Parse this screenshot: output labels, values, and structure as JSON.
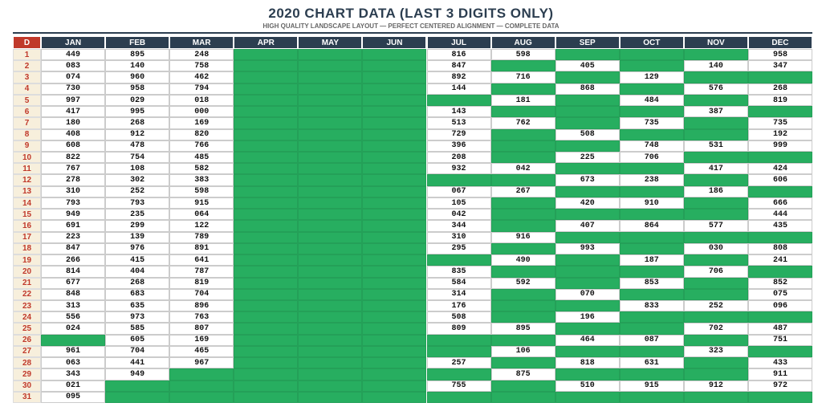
{
  "header": {
    "title": "2020 CHART DATA (LAST 3 DIGITS ONLY)",
    "subtitle": "HIGH QUALITY LANDSCAPE LAYOUT — PERFECT CENTERED ALIGNMENT — COMPLETE DATA"
  },
  "table": {
    "columns": [
      "D",
      "JAN",
      "FEB",
      "MAR",
      "APR",
      "MAY",
      "JUN",
      "JUL",
      "AUG",
      "SEP",
      "OCT",
      "NOV",
      "DEC"
    ],
    "rows": [
      {
        "day": "1",
        "cells": [
          "449",
          "895",
          "248",
          null,
          null,
          null,
          "816",
          "598",
          null,
          null,
          null,
          "958"
        ]
      },
      {
        "day": "2",
        "cells": [
          "083",
          "140",
          "758",
          null,
          null,
          null,
          "847",
          null,
          "405",
          null,
          "140",
          "347"
        ]
      },
      {
        "day": "3",
        "cells": [
          "074",
          "960",
          "462",
          null,
          null,
          null,
          "892",
          "716",
          null,
          "129",
          null,
          null
        ]
      },
      {
        "day": "4",
        "cells": [
          "730",
          "958",
          "794",
          null,
          null,
          null,
          "144",
          null,
          "868",
          null,
          "576",
          "268"
        ]
      },
      {
        "day": "5",
        "cells": [
          "997",
          "029",
          "018",
          null,
          null,
          null,
          null,
          "181",
          null,
          "484",
          null,
          "819"
        ]
      },
      {
        "day": "6",
        "cells": [
          "417",
          "995",
          "000",
          null,
          null,
          null,
          "143",
          null,
          null,
          null,
          "387",
          null
        ]
      },
      {
        "day": "7",
        "cells": [
          "180",
          "268",
          "169",
          null,
          null,
          null,
          "513",
          "762",
          null,
          "735",
          null,
          "735"
        ]
      },
      {
        "day": "8",
        "cells": [
          "408",
          "912",
          "820",
          null,
          null,
          null,
          "729",
          null,
          "508",
          null,
          null,
          "192"
        ]
      },
      {
        "day": "9",
        "cells": [
          "608",
          "478",
          "766",
          null,
          null,
          null,
          "396",
          null,
          null,
          "748",
          "531",
          "999"
        ]
      },
      {
        "day": "10",
        "cells": [
          "822",
          "754",
          "485",
          null,
          null,
          null,
          "208",
          null,
          "225",
          "706",
          null,
          null
        ]
      },
      {
        "day": "11",
        "cells": [
          "767",
          "108",
          "582",
          null,
          null,
          null,
          "932",
          "042",
          null,
          null,
          "417",
          "424"
        ]
      },
      {
        "day": "12",
        "cells": [
          "278",
          "302",
          "383",
          null,
          null,
          null,
          null,
          null,
          "673",
          "238",
          null,
          "606"
        ]
      },
      {
        "day": "13",
        "cells": [
          "310",
          "252",
          "598",
          null,
          null,
          null,
          "067",
          "267",
          null,
          null,
          "186",
          null
        ]
      },
      {
        "day": "14",
        "cells": [
          "793",
          "793",
          "915",
          null,
          null,
          null,
          "105",
          null,
          "420",
          "910",
          null,
          "666"
        ]
      },
      {
        "day": "15",
        "cells": [
          "949",
          "235",
          "064",
          null,
          null,
          null,
          "042",
          null,
          null,
          null,
          null,
          "444"
        ]
      },
      {
        "day": "16",
        "cells": [
          "691",
          "299",
          "122",
          null,
          null,
          null,
          "344",
          null,
          "407",
          "864",
          "577",
          "435"
        ]
      },
      {
        "day": "17",
        "cells": [
          "223",
          "139",
          "789",
          null,
          null,
          null,
          "310",
          "916",
          null,
          null,
          null,
          null
        ]
      },
      {
        "day": "18",
        "cells": [
          "847",
          "976",
          "891",
          null,
          null,
          null,
          "295",
          null,
          "993",
          null,
          "030",
          "808"
        ]
      },
      {
        "day": "19",
        "cells": [
          "266",
          "415",
          "641",
          null,
          null,
          null,
          null,
          "490",
          null,
          "187",
          null,
          "241"
        ]
      },
      {
        "day": "20",
        "cells": [
          "814",
          "404",
          "787",
          null,
          null,
          null,
          "835",
          null,
          null,
          null,
          "706",
          null
        ]
      },
      {
        "day": "21",
        "cells": [
          "677",
          "268",
          "819",
          null,
          null,
          null,
          "584",
          "592",
          null,
          "853",
          null,
          "852"
        ]
      },
      {
        "day": "22",
        "cells": [
          "848",
          "683",
          "704",
          null,
          null,
          null,
          "314",
          null,
          "070",
          null,
          null,
          "075"
        ]
      },
      {
        "day": "23",
        "cells": [
          "313",
          "635",
          "896",
          null,
          null,
          null,
          "176",
          null,
          null,
          "833",
          "252",
          "096"
        ]
      },
      {
        "day": "24",
        "cells": [
          "556",
          "973",
          "763",
          null,
          null,
          null,
          "508",
          null,
          "196",
          null,
          null,
          null
        ]
      },
      {
        "day": "25",
        "cells": [
          "024",
          "585",
          "807",
          null,
          null,
          null,
          "809",
          "895",
          null,
          null,
          "702",
          "487"
        ]
      },
      {
        "day": "26",
        "cells": [
          null,
          "605",
          "169",
          null,
          null,
          null,
          null,
          null,
          "464",
          "087",
          null,
          "751"
        ]
      },
      {
        "day": "27",
        "cells": [
          "961",
          "704",
          "465",
          null,
          null,
          null,
          null,
          "106",
          null,
          null,
          "323",
          null
        ]
      },
      {
        "day": "28",
        "cells": [
          "063",
          "441",
          "967",
          null,
          null,
          null,
          "257",
          null,
          "818",
          "631",
          null,
          "433"
        ]
      },
      {
        "day": "29",
        "cells": [
          "343",
          "949",
          null,
          null,
          null,
          null,
          null,
          "875",
          null,
          null,
          null,
          "911"
        ]
      },
      {
        "day": "30",
        "cells": [
          "021",
          null,
          null,
          null,
          null,
          null,
          "755",
          null,
          "510",
          "915",
          "912",
          "972"
        ]
      },
      {
        "day": "31",
        "cells": [
          "095",
          null,
          null,
          null,
          null,
          null,
          null,
          null,
          null,
          null,
          null,
          null
        ]
      }
    ]
  }
}
